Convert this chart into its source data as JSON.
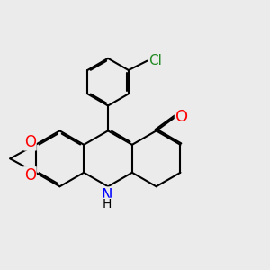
{
  "background_color": "#ebebeb",
  "bond_color": "#000000",
  "bond_width": 1.5,
  "atom_colors": {
    "O": "#ff0000",
    "N": "#0000ff",
    "Cl": "#228b22",
    "C": "#000000",
    "H": "#000000"
  },
  "font_size": 11,
  "fig_size": [
    3.0,
    3.0
  ],
  "dpi": 100
}
